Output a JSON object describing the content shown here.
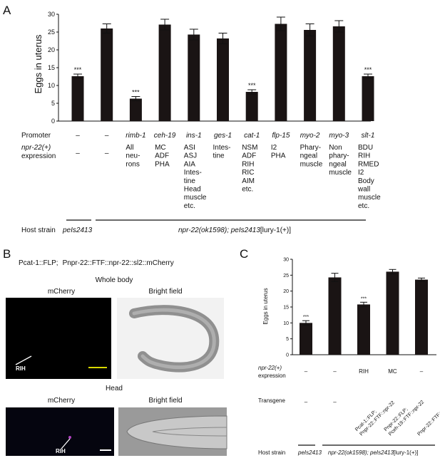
{
  "panels": {
    "A": "A",
    "B": "B",
    "C": "C"
  },
  "chart_data": [
    {
      "type": "bar",
      "panel": "A",
      "ylabel": "Eggs in uterus",
      "ylim": [
        0,
        30
      ],
      "yticks": [
        0,
        5,
        10,
        15,
        20,
        25,
        30
      ],
      "values": [
        12.6,
        26.0,
        6.3,
        27.1,
        24.3,
        23.2,
        8.2,
        27.3,
        25.6,
        26.6,
        12.6
      ],
      "errors": [
        0.6,
        1.3,
        0.6,
        1.5,
        1.5,
        1.5,
        0.6,
        1.9,
        1.7,
        1.6,
        0.6
      ],
      "significance": [
        "***",
        "",
        "***",
        "",
        "",
        "",
        "***",
        "",
        "",
        "",
        "***"
      ],
      "row_labels": {
        "promoter": "Promoter",
        "expression_1": "npr-22(+)",
        "expression_2": "expression",
        "host": "Host strain"
      },
      "promoters": [
        "–",
        "–",
        "rimb-1",
        "ceh-19",
        "ins-1",
        "ges-1",
        "cat-1",
        "flp-15",
        "myo-2",
        "myo-3",
        "slt-1"
      ],
      "expression": [
        [
          "–"
        ],
        [
          "–"
        ],
        [
          "All",
          "neu-",
          "rons"
        ],
        [
          "MC",
          "ADF",
          "PHA"
        ],
        [
          "ASI",
          "ASJ",
          "AIA",
          "Intes-",
          "tine",
          "Head",
          "muscle",
          "etc."
        ],
        [
          "Intes-",
          "tine"
        ],
        [
          "NSM",
          "ADF",
          "RIH",
          "RIC",
          "AIM",
          "etc."
        ],
        [
          "I2",
          "PHA"
        ],
        [
          "Phary-",
          "ngeal",
          "muscle"
        ],
        [
          "Non",
          "phary-",
          "ngeal",
          "muscle"
        ],
        [
          "BDU",
          "RIH",
          "RMED",
          "I2",
          "Body",
          "wall",
          "muscle",
          "etc."
        ]
      ],
      "host_strains": {
        "control": "peIs2413",
        "mutant_1": "npr-22(ok1598); peIs2413",
        "mutant_2": "[lury-1(+)]"
      }
    },
    {
      "type": "bar",
      "panel": "C",
      "ylabel": "Eggs in uterus",
      "ylim": [
        0,
        30
      ],
      "yticks": [
        0,
        5,
        10,
        15,
        20,
        25,
        30
      ],
      "values": [
        10.0,
        24.3,
        15.8,
        26.1,
        23.6
      ],
      "errors": [
        0.7,
        1.3,
        0.7,
        0.7,
        0.5
      ],
      "significance": [
        "***",
        "",
        "***",
        "",
        ""
      ],
      "row_labels": {
        "expression_1": "npr-22(+)",
        "expression_2": "expression",
        "transgene": "Transgene",
        "host": "Host strain"
      },
      "expression": [
        "–",
        "–",
        "RIH",
        "MC",
        "–"
      ],
      "transgenes": [
        [
          "–"
        ],
        [
          "–"
        ],
        [
          "Pcat-1::FLP;",
          "Pnpr-22::FTF::npr-22"
        ],
        [
          "Pnpr-22::FLP;",
          "Pceh-19::FTF::npr-22"
        ],
        [
          "Pnpr-22::FTF::npr-22"
        ]
      ],
      "host_strains": {
        "control": "peIs2413",
        "mutant_1": "npr-22(ok1598); peIs2413",
        "mutant_2": "[lury-1(+)]"
      }
    }
  ],
  "panel_b": {
    "construct_1": "Pcat-1::FLP;",
    "construct_2": "Pnpr-22::FTF::npr-22::sl2::mCherry",
    "whole_body_title": "Whole body",
    "head_title": "Head",
    "mcherry_label": "mCherry",
    "bright_field_label": "Bright field",
    "rih_label": "RIH",
    "scale_bar_colors": {
      "whole_body": "#d8d800",
      "head": "#ffffff"
    }
  }
}
